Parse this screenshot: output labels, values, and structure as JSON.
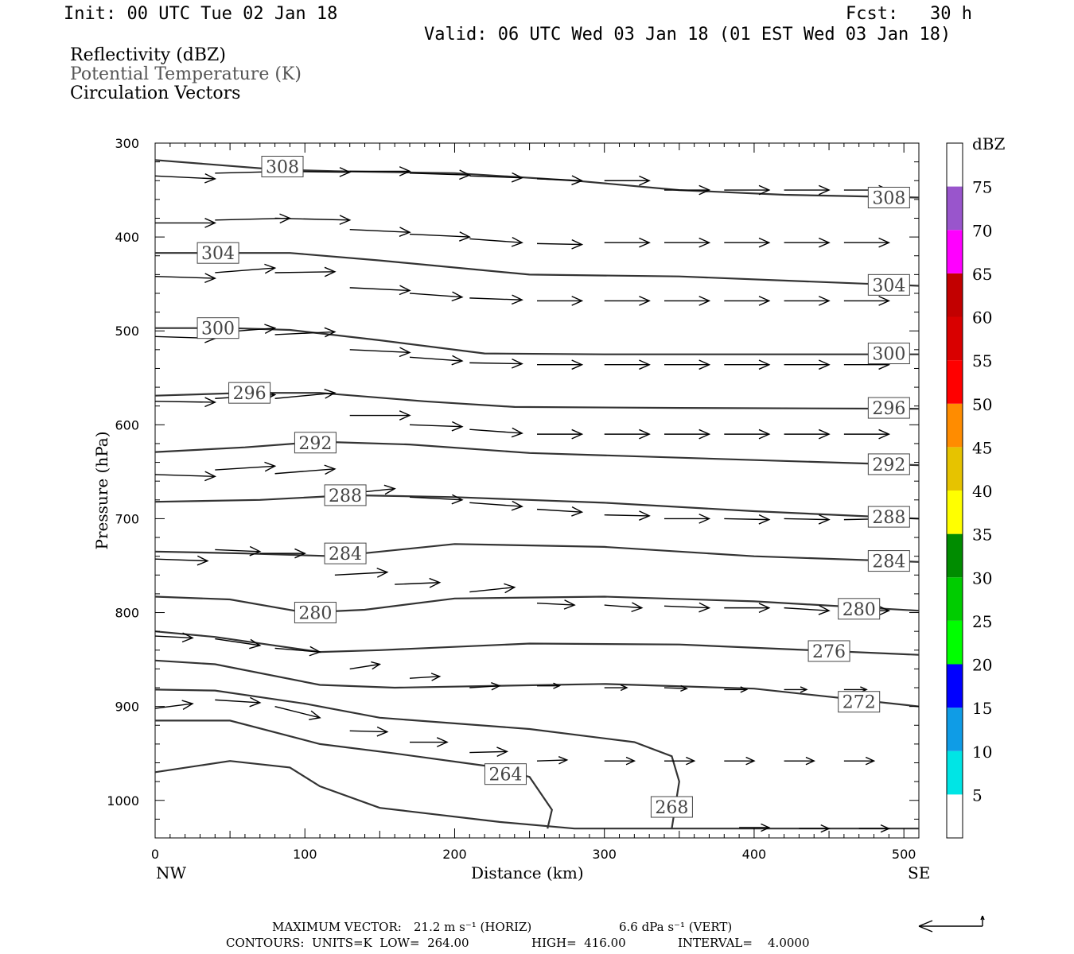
{
  "header": {
    "init": "Init: 00 UTC Tue 02 Jan 18",
    "fcst": "Fcst:   30 h",
    "valid": "Valid: 06 UTC Wed 03 Jan 18 (01 EST Wed 03 Jan 18)",
    "field1": "Reflectivity (dBZ)",
    "field2": "Potential Temperature (K)",
    "field3": "Circulation Vectors"
  },
  "footer": {
    "max_vector_label": "MAXIMUM VECTOR:",
    "max_horiz": "21.2 m s⁻¹ (HORIZ)",
    "max_vert": "6.6 dPa s⁻¹ (VERT)",
    "contours": "CONTOURS:  UNITS=K  LOW=  264.00",
    "high": "HIGH=  416.00",
    "interval": "INTERVAL=    4.0000"
  },
  "colors": {
    "contour": "#333333",
    "scale_stops": [
      "#00e5e5",
      "#0f9ce6",
      "#0000ff",
      "#00ff00",
      "#00cc00",
      "#008c00",
      "#ffff00",
      "#e6c300",
      "#ff8c00",
      "#ff0000",
      "#d90000",
      "#c20000",
      "#ff00ff",
      "#9955cc"
    ]
  },
  "chart_data": {
    "type": "cross-section",
    "xlabel": "Distance (km)",
    "ylabel": "Pressure (hPa)",
    "xlim": [
      0,
      510
    ],
    "ylim": [
      1040,
      300
    ],
    "x_ticks": [
      "0",
      "100",
      "200",
      "300",
      "400",
      "500"
    ],
    "y_ticks": [
      "300",
      "400",
      "500",
      "600",
      "700",
      "800",
      "900",
      "1000"
    ],
    "x_end_labels": [
      "NW",
      "SE"
    ],
    "grid": false,
    "colorbar": {
      "unit": "dBZ",
      "labels": [
        "5",
        "10",
        "15",
        "20",
        "25",
        "30",
        "35",
        "40",
        "45",
        "50",
        "55",
        "60",
        "65",
        "70",
        "75"
      ],
      "range": [
        0,
        80
      ]
    },
    "contours": [
      {
        "level": "308",
        "points": [
          [
            0,
            318
          ],
          [
            80,
            328
          ],
          [
            120,
            330
          ],
          [
            200,
            332
          ],
          [
            280,
            340
          ],
          [
            350,
            350
          ],
          [
            420,
            355
          ],
          [
            510,
            358
          ]
        ],
        "labels": [
          [
            85,
            325
          ],
          [
            490,
            358
          ]
        ]
      },
      {
        "level": "304",
        "points": [
          [
            0,
            417
          ],
          [
            50,
            417
          ],
          [
            90,
            417
          ],
          [
            150,
            425
          ],
          [
            250,
            440
          ],
          [
            350,
            442
          ],
          [
            430,
            447
          ],
          [
            510,
            452
          ]
        ],
        "labels": [
          [
            42,
            417
          ],
          [
            490,
            451
          ]
        ]
      },
      {
        "level": "300",
        "points": [
          [
            0,
            497
          ],
          [
            50,
            497
          ],
          [
            90,
            499
          ],
          [
            150,
            510
          ],
          [
            220,
            524
          ],
          [
            300,
            525
          ],
          [
            400,
            525
          ],
          [
            510,
            525
          ]
        ],
        "labels": [
          [
            42,
            497
          ],
          [
            490,
            524
          ]
        ]
      },
      {
        "level": "296",
        "points": [
          [
            0,
            569
          ],
          [
            60,
            566
          ],
          [
            110,
            566
          ],
          [
            180,
            575
          ],
          [
            240,
            581
          ],
          [
            350,
            582
          ],
          [
            510,
            583
          ]
        ],
        "labels": [
          [
            63,
            566
          ],
          [
            490,
            582
          ]
        ]
      },
      {
        "level": "292",
        "points": [
          [
            0,
            629
          ],
          [
            60,
            624
          ],
          [
            110,
            618
          ],
          [
            170,
            621
          ],
          [
            250,
            630
          ],
          [
            350,
            635
          ],
          [
            510,
            643
          ]
        ],
        "labels": [
          [
            107,
            619
          ],
          [
            490,
            642
          ]
        ]
      },
      {
        "level": "288",
        "points": [
          [
            0,
            682
          ],
          [
            70,
            680
          ],
          [
            130,
            675
          ],
          [
            200,
            677
          ],
          [
            300,
            683
          ],
          [
            400,
            692
          ],
          [
            510,
            700
          ]
        ],
        "labels": [
          [
            127,
            675
          ],
          [
            490,
            698
          ]
        ]
      },
      {
        "level": "284",
        "points": [
          [
            0,
            735
          ],
          [
            60,
            737
          ],
          [
            120,
            740
          ],
          [
            200,
            727
          ],
          [
            300,
            730
          ],
          [
            400,
            740
          ],
          [
            510,
            746
          ]
        ],
        "labels": [
          [
            127,
            737
          ],
          [
            490,
            745
          ]
        ]
      },
      {
        "level": "280",
        "points": [
          [
            0,
            783
          ],
          [
            50,
            786
          ],
          [
            100,
            800
          ],
          [
            140,
            797
          ],
          [
            200,
            785
          ],
          [
            300,
            783
          ],
          [
            400,
            788
          ],
          [
            510,
            798
          ]
        ],
        "labels": [
          [
            107,
            800
          ],
          [
            470,
            796
          ]
        ]
      },
      {
        "level": "276",
        "points": [
          [
            0,
            820
          ],
          [
            40,
            826
          ],
          [
            110,
            842
          ],
          [
            150,
            840
          ],
          [
            250,
            833
          ],
          [
            350,
            834
          ],
          [
            510,
            845
          ]
        ],
        "labels": [
          [
            450,
            841
          ]
        ]
      },
      {
        "level": "272",
        "points": [
          [
            0,
            851
          ],
          [
            40,
            855
          ],
          [
            110,
            877
          ],
          [
            160,
            880
          ],
          [
            300,
            876
          ],
          [
            400,
            881
          ],
          [
            510,
            900
          ]
        ],
        "labels": [
          [
            470,
            895
          ]
        ]
      },
      {
        "level": "268",
        "points": [
          [
            0,
            882
          ],
          [
            40,
            883
          ],
          [
            100,
            897
          ],
          [
            150,
            912
          ],
          [
            250,
            924
          ],
          [
            320,
            938
          ],
          [
            345,
            953
          ],
          [
            350,
            980
          ],
          [
            345,
            1030
          ]
        ],
        "labels": [
          [
            345,
            1007
          ]
        ]
      },
      {
        "level": "264",
        "points": [
          [
            0,
            915
          ],
          [
            50,
            915
          ],
          [
            110,
            940
          ],
          [
            160,
            950
          ],
          [
            220,
            963
          ],
          [
            250,
            975
          ],
          [
            265,
            1010
          ],
          [
            262,
            1030
          ]
        ],
        "labels": [
          [
            234,
            972
          ]
        ]
      },
      {
        "level": "",
        "points": [
          [
            0,
            970
          ],
          [
            50,
            958
          ],
          [
            90,
            965
          ],
          [
            110,
            985
          ],
          [
            150,
            1008
          ],
          [
            230,
            1023
          ],
          [
            280,
            1030
          ],
          [
            400,
            1030
          ],
          [
            510,
            1030
          ]
        ],
        "labels": []
      }
    ],
    "vectors": [
      [
        0,
        335,
        40,
        338
      ],
      [
        40,
        332,
        90,
        330
      ],
      [
        80,
        330,
        130,
        331
      ],
      [
        130,
        330,
        170,
        330
      ],
      [
        170,
        332,
        210,
        334
      ],
      [
        210,
        335,
        245,
        337
      ],
      [
        255,
        338,
        285,
        340
      ],
      [
        300,
        340,
        330,
        340
      ],
      [
        340,
        350,
        370,
        350
      ],
      [
        380,
        350,
        410,
        350
      ],
      [
        420,
        350,
        450,
        350
      ],
      [
        460,
        350,
        490,
        350
      ],
      [
        0,
        385,
        40,
        385
      ],
      [
        40,
        382,
        90,
        380
      ],
      [
        80,
        380,
        130,
        382
      ],
      [
        130,
        392,
        170,
        395
      ],
      [
        170,
        397,
        210,
        400
      ],
      [
        210,
        402,
        245,
        406
      ],
      [
        255,
        407,
        285,
        408
      ],
      [
        300,
        406,
        330,
        406
      ],
      [
        340,
        406,
        370,
        406
      ],
      [
        380,
        406,
        410,
        406
      ],
      [
        420,
        406,
        450,
        406
      ],
      [
        460,
        406,
        490,
        406
      ],
      [
        0,
        442,
        40,
        444
      ],
      [
        40,
        438,
        80,
        433
      ],
      [
        80,
        438,
        120,
        437
      ],
      [
        130,
        454,
        170,
        457
      ],
      [
        170,
        460,
        205,
        464
      ],
      [
        210,
        465,
        245,
        467
      ],
      [
        255,
        468,
        285,
        468
      ],
      [
        300,
        468,
        330,
        468
      ],
      [
        340,
        468,
        370,
        468
      ],
      [
        380,
        468,
        410,
        468
      ],
      [
        420,
        468,
        450,
        468
      ],
      [
        460,
        468,
        490,
        468
      ],
      [
        0,
        506,
        40,
        508
      ],
      [
        40,
        502,
        80,
        497
      ],
      [
        80,
        504,
        120,
        501
      ],
      [
        130,
        520,
        170,
        523
      ],
      [
        170,
        528,
        205,
        532
      ],
      [
        210,
        534,
        245,
        535
      ],
      [
        255,
        536,
        285,
        536
      ],
      [
        300,
        536,
        330,
        536
      ],
      [
        340,
        536,
        370,
        536
      ],
      [
        380,
        536,
        410,
        536
      ],
      [
        420,
        536,
        450,
        536
      ],
      [
        460,
        536,
        490,
        536
      ],
      [
        0,
        575,
        40,
        576
      ],
      [
        40,
        572,
        80,
        568
      ],
      [
        80,
        572,
        120,
        566
      ],
      [
        130,
        590,
        170,
        590
      ],
      [
        170,
        600,
        205,
        602
      ],
      [
        210,
        605,
        245,
        609
      ],
      [
        255,
        610,
        285,
        610
      ],
      [
        300,
        610,
        330,
        610
      ],
      [
        340,
        610,
        370,
        610
      ],
      [
        380,
        610,
        410,
        610
      ],
      [
        420,
        610,
        450,
        610
      ],
      [
        460,
        610,
        490,
        610
      ],
      [
        0,
        653,
        40,
        655
      ],
      [
        40,
        648,
        80,
        644
      ],
      [
        80,
        652,
        120,
        647
      ],
      [
        130,
        673,
        160,
        668
      ],
      [
        170,
        677,
        205,
        680
      ],
      [
        210,
        683,
        245,
        687
      ],
      [
        255,
        690,
        285,
        693
      ],
      [
        300,
        696,
        330,
        697
      ],
      [
        340,
        700,
        370,
        700
      ],
      [
        380,
        700,
        410,
        701
      ],
      [
        420,
        700,
        450,
        701
      ],
      [
        460,
        701,
        490,
        700
      ],
      [
        0,
        743,
        35,
        745
      ],
      [
        40,
        733,
        70,
        735
      ],
      [
        70,
        737,
        100,
        737
      ],
      [
        120,
        760,
        155,
        757
      ],
      [
        160,
        770,
        190,
        768
      ],
      [
        210,
        778,
        240,
        773
      ],
      [
        255,
        790,
        280,
        792
      ],
      [
        300,
        792,
        325,
        795
      ],
      [
        340,
        793,
        370,
        795
      ],
      [
        380,
        795,
        410,
        795
      ],
      [
        420,
        795,
        450,
        798
      ],
      [
        460,
        798,
        490,
        798
      ],
      [
        0,
        825,
        25,
        827
      ],
      [
        40,
        828,
        70,
        835
      ],
      [
        80,
        838,
        110,
        842
      ],
      [
        130,
        860,
        150,
        855
      ],
      [
        170,
        870,
        190,
        868
      ],
      [
        210,
        880,
        230,
        878
      ],
      [
        255,
        878,
        270,
        878
      ],
      [
        300,
        880,
        315,
        880
      ],
      [
        340,
        880,
        355,
        881
      ],
      [
        380,
        882,
        395,
        882
      ],
      [
        420,
        882,
        435,
        882
      ],
      [
        460,
        882,
        475,
        882
      ],
      [
        0,
        902,
        25,
        897
      ],
      [
        40,
        893,
        70,
        896
      ],
      [
        80,
        900,
        110,
        912
      ],
      [
        130,
        926,
        155,
        927
      ],
      [
        170,
        938,
        195,
        938
      ],
      [
        210,
        949,
        235,
        948
      ],
      [
        255,
        958,
        275,
        957
      ],
      [
        300,
        958,
        320,
        958
      ],
      [
        340,
        958,
        360,
        958
      ],
      [
        380,
        958,
        400,
        958
      ],
      [
        420,
        958,
        440,
        958
      ],
      [
        460,
        958,
        480,
        958
      ],
      [
        390,
        1029,
        410,
        1029
      ],
      [
        430,
        1030,
        450,
        1030
      ],
      [
        470,
        1030,
        490,
        1030
      ]
    ]
  }
}
